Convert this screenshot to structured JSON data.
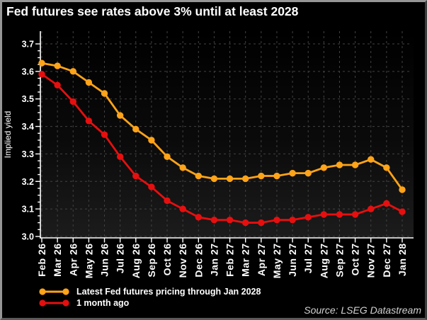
{
  "title": "Fed futures see rates above 3% until at least 2028",
  "source": "Source: LSEG Datastream",
  "colors": {
    "background": "#000000",
    "grid": "#424242",
    "axis": "#ffffff",
    "text": "#ffffff",
    "source_text": "#d2d2d2",
    "accent_orange": "#ffa319",
    "accent_red": "#e60f0f"
  },
  "chart_data": {
    "type": "line",
    "title": "Fed futures see rates above 3% until at least 2028",
    "ylabel": "Implied yield",
    "xlabel": "",
    "ylim": [
      3.0,
      3.7
    ],
    "ytick_step": 0.1,
    "ytick_labels": [
      "3.0",
      "3.1",
      "3.2",
      "3.3",
      "3.4",
      "3.5",
      "3.6",
      "3.7"
    ],
    "grid": true,
    "grid_style": "dashed",
    "legend_position": "bottom-left",
    "categories": [
      "Feb 26",
      "Mar 26",
      "Apr 26",
      "May 26",
      "Jun 26",
      "Jul 26",
      "Aug 26",
      "Sep 26",
      "Oct 26",
      "Nov 26",
      "Dec 26",
      "Jan 27",
      "Feb 27",
      "Mar 27",
      "Apr 27",
      "May 27",
      "Jun 27",
      "Jul 27",
      "Aug 27",
      "Sep 27",
      "Oct 27",
      "Nov 27",
      "Dec 27",
      "Jan 28"
    ],
    "series": [
      {
        "name": "Latest Fed futures pricing through Jan 2028",
        "color": "#ffa319",
        "values": [
          3.63,
          3.62,
          3.6,
          3.56,
          3.52,
          3.44,
          3.39,
          3.35,
          3.29,
          3.25,
          3.22,
          3.21,
          3.21,
          3.21,
          3.22,
          3.22,
          3.23,
          3.23,
          3.25,
          3.26,
          3.26,
          3.28,
          3.25,
          3.17
        ]
      },
      {
        "name": "1 month ago",
        "color": "#e60f0f",
        "values": [
          3.59,
          3.55,
          3.49,
          3.42,
          3.37,
          3.29,
          3.22,
          3.18,
          3.13,
          3.1,
          3.07,
          3.06,
          3.06,
          3.05,
          3.05,
          3.06,
          3.06,
          3.07,
          3.08,
          3.08,
          3.08,
          3.1,
          3.12,
          3.09
        ]
      }
    ]
  }
}
